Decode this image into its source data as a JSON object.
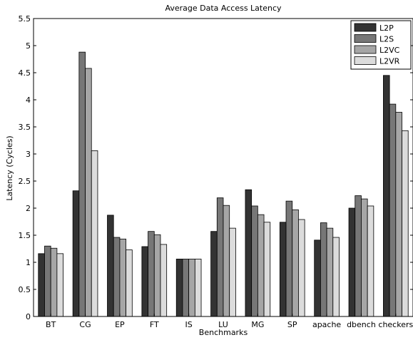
{
  "chart_data": {
    "type": "bar",
    "title": "Average Data Access Latency",
    "xlabel": "Benchmarks",
    "ylabel": "Latency (Cycles)",
    "ylim": [
      0,
      5.5
    ],
    "yticks": [
      "0",
      "0.5",
      "1",
      "1.5",
      "2",
      "2.5",
      "3",
      "3.5",
      "4",
      "4.5",
      "5",
      "5.5"
    ],
    "yticks_values": [
      0,
      0.5,
      1,
      1.5,
      2,
      2.5,
      3,
      3.5,
      4,
      4.5,
      5,
      5.5
    ],
    "categories": [
      "BT",
      "CG",
      "EP",
      "FT",
      "IS",
      "LU",
      "MG",
      "SP",
      "apache",
      "dbench",
      "checkers"
    ],
    "legend_position": "top-right",
    "grid": false,
    "series": [
      {
        "name": "L2P",
        "color": "#333333",
        "values": [
          1.16,
          2.32,
          1.87,
          1.29,
          1.06,
          1.57,
          2.34,
          1.74,
          1.41,
          2.0,
          4.45
        ]
      },
      {
        "name": "L2S",
        "color": "#777777",
        "values": [
          1.3,
          4.88,
          1.46,
          1.57,
          1.06,
          2.19,
          2.04,
          2.13,
          1.73,
          2.23,
          3.92
        ]
      },
      {
        "name": "L2VC",
        "color": "#a6a6a6",
        "values": [
          1.26,
          4.58,
          1.43,
          1.51,
          1.06,
          2.05,
          1.88,
          1.97,
          1.63,
          2.17,
          3.77
        ]
      },
      {
        "name": "L2VR",
        "color": "#dcdcdc",
        "values": [
          1.16,
          3.06,
          1.23,
          1.33,
          1.06,
          1.63,
          1.74,
          1.79,
          1.46,
          2.04,
          3.43
        ]
      }
    ]
  }
}
